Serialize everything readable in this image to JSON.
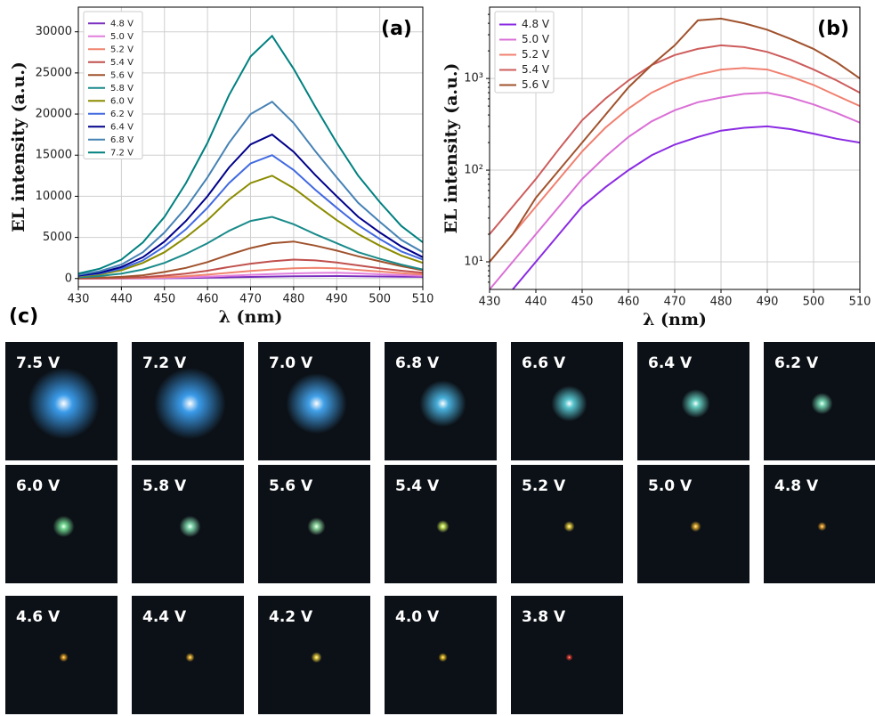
{
  "chart_data": [
    {
      "type": "line",
      "panel_label": "(a)",
      "xlabel": "λ (nm)",
      "ylabel": "EL intensity (a.u.)",
      "x": [
        430,
        435,
        440,
        445,
        450,
        455,
        460,
        465,
        470,
        475,
        480,
        485,
        490,
        495,
        500,
        505,
        510
      ],
      "xlim": [
        430,
        510
      ],
      "xticks": [
        430,
        440,
        450,
        460,
        470,
        480,
        490,
        500,
        510
      ],
      "ylim": [
        -1000,
        33000
      ],
      "yticks": [
        0,
        5000,
        10000,
        15000,
        20000,
        25000,
        30000
      ],
      "grid": true,
      "legend": "upper left",
      "series": [
        {
          "name": "4.8 V",
          "color": "#7b2fbe",
          "values": [
            2,
            5,
            10,
            20,
            40,
            65,
            100,
            145,
            190,
            230,
            270,
            290,
            300,
            280,
            250,
            220,
            200
          ]
        },
        {
          "name": "5.0 V",
          "color": "#e27fdc",
          "values": [
            5,
            10,
            20,
            40,
            80,
            140,
            230,
            340,
            450,
            550,
            620,
            680,
            700,
            620,
            520,
            420,
            330
          ]
        },
        {
          "name": "5.2 V",
          "color": "#f0836e",
          "values": [
            10,
            20,
            40,
            80,
            160,
            290,
            470,
            700,
            920,
            1100,
            1250,
            1300,
            1250,
            1050,
            850,
            650,
            500
          ]
        },
        {
          "name": "5.4 V",
          "color": "#c0504d",
          "values": [
            20,
            40,
            80,
            170,
            350,
            600,
            950,
            1400,
            1800,
            2100,
            2300,
            2200,
            1950,
            1600,
            1250,
            950,
            700
          ]
        },
        {
          "name": "5.6 V",
          "color": "#a0522d",
          "values": [
            50,
            100,
            200,
            400,
            800,
            1300,
            2000,
            2900,
            3700,
            4300,
            4500,
            4000,
            3400,
            2700,
            2100,
            1500,
            1000
          ]
        },
        {
          "name": "5.8 V",
          "color": "#1a8a8a",
          "values": [
            150,
            300,
            600,
            1100,
            1900,
            3000,
            4300,
            5800,
            7000,
            7500,
            6600,
            5400,
            4300,
            3200,
            2400,
            1700,
            1100
          ]
        },
        {
          "name": "6.0 V",
          "color": "#8b8b00",
          "values": [
            250,
            500,
            1000,
            1900,
            3200,
            5000,
            7100,
            9600,
            11600,
            12500,
            11000,
            9000,
            7100,
            5400,
            4000,
            2800,
            1900
          ]
        },
        {
          "name": "6.2 V",
          "color": "#4169e1",
          "values": [
            300,
            600,
            1200,
            2200,
            3900,
            6000,
            8600,
            11600,
            14000,
            15000,
            13200,
            10800,
            8600,
            6500,
            4800,
            3300,
            2300
          ]
        },
        {
          "name": "6.4 V",
          "color": "#00008b",
          "values": [
            350,
            700,
            1400,
            2600,
            4500,
            7000,
            10000,
            13500,
            16300,
            17500,
            15400,
            12600,
            10000,
            7500,
            5600,
            3900,
            2600
          ]
        },
        {
          "name": "6.8 V",
          "color": "#4682b4",
          "values": [
            450,
            900,
            1700,
            3200,
            5600,
            8600,
            12300,
            16500,
            20000,
            21500,
            18900,
            15500,
            12300,
            9200,
            6900,
            4700,
            3200
          ]
        },
        {
          "name": "7.2 V",
          "color": "#008080",
          "values": [
            600,
            1200,
            2300,
            4400,
            7500,
            11600,
            16500,
            22300,
            27000,
            29500,
            25500,
            20900,
            16500,
            12500,
            9300,
            6400,
            4400
          ]
        }
      ]
    },
    {
      "type": "line",
      "panel_label": "(b)",
      "xlabel": "λ (nm)",
      "ylabel": "EL intensity (a.u.)",
      "log_y": true,
      "x": [
        430,
        435,
        440,
        445,
        450,
        455,
        460,
        465,
        470,
        475,
        480,
        485,
        490,
        495,
        500,
        505,
        510
      ],
      "xlim": [
        430,
        510
      ],
      "xticks": [
        430,
        440,
        450,
        460,
        470,
        480,
        490,
        500,
        510
      ],
      "ylim": [
        5,
        6000
      ],
      "yticks": [
        {
          "value": 10,
          "label": "10¹"
        },
        {
          "value": 100,
          "label": "10²"
        },
        {
          "value": 1000,
          "label": "10³"
        }
      ],
      "grid": true,
      "legend": "upper left",
      "series": [
        {
          "name": "4.8 V",
          "color": "#8a2be2",
          "values": [
            2,
            5,
            10,
            20,
            40,
            65,
            100,
            145,
            190,
            230,
            270,
            290,
            300,
            280,
            250,
            220,
            200
          ]
        },
        {
          "name": "5.0 V",
          "color": "#da70d6",
          "values": [
            5,
            10,
            20,
            40,
            80,
            140,
            230,
            340,
            450,
            550,
            620,
            680,
            700,
            620,
            520,
            420,
            330
          ]
        },
        {
          "name": "5.2 V",
          "color": "#f08070",
          "values": [
            10,
            20,
            40,
            80,
            160,
            290,
            470,
            700,
            920,
            1100,
            1250,
            1300,
            1250,
            1050,
            850,
            650,
            500
          ]
        },
        {
          "name": "5.4 V",
          "color": "#cd5c5c",
          "values": [
            20,
            40,
            80,
            170,
            350,
            600,
            950,
            1400,
            1800,
            2100,
            2300,
            2200,
            1950,
            1600,
            1250,
            950,
            700
          ]
        },
        {
          "name": "5.6 V",
          "color": "#a0522d",
          "values": [
            10,
            20,
            50,
            100,
            200,
            400,
            800,
            1400,
            2300,
            4300,
            4500,
            4000,
            3400,
            2700,
            2100,
            1500,
            1000
          ]
        }
      ]
    }
  ],
  "panel_c": {
    "label": "(c)",
    "images": [
      {
        "label": "7.5 V"
      },
      {
        "label": "7.2 V"
      },
      {
        "label": "7.0 V"
      },
      {
        "label": "6.8 V"
      },
      {
        "label": "6.6 V"
      },
      {
        "label": "6.4 V"
      },
      {
        "label": "6.2 V"
      },
      {
        "label": "6.0 V"
      },
      {
        "label": "5.8 V"
      },
      {
        "label": "5.6 V"
      },
      {
        "label": "5.4 V"
      },
      {
        "label": "5.2 V"
      },
      {
        "label": "5.0 V"
      },
      {
        "label": "4.8 V"
      },
      {
        "label": "4.6 V"
      },
      {
        "label": "4.4 V"
      },
      {
        "label": "4.2 V"
      },
      {
        "label": "4.0 V"
      },
      {
        "label": "3.8 V"
      }
    ]
  }
}
